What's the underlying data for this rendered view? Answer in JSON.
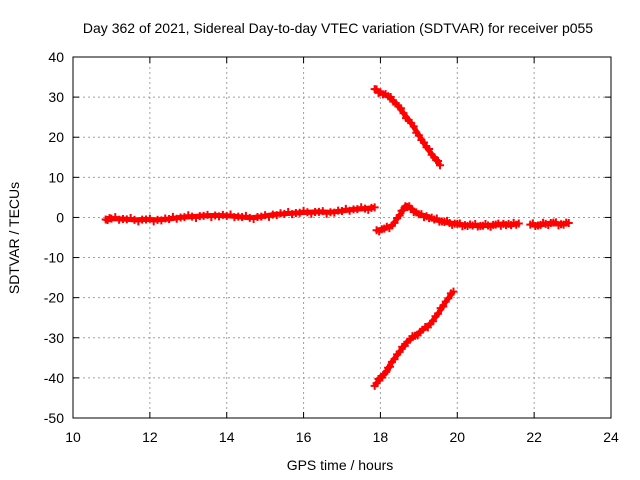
{
  "chart_data": {
    "type": "scatter",
    "title": "Day 362 of 2021, Sidereal Day-to-day VTEC variation (SDTVAR) for receiver p055",
    "xlabel": "GPS time / hours",
    "ylabel": "SDTVAR / TECUs",
    "xlim": [
      10,
      24
    ],
    "ylim": [
      -50,
      40
    ],
    "x_ticks": [
      "10",
      "12",
      "14",
      "16",
      "18",
      "20",
      "22",
      "24"
    ],
    "y_ticks": [
      "40",
      "30",
      "20",
      "10",
      "0",
      "-10",
      "-20",
      "-30",
      "-40",
      "-50"
    ],
    "grid": true,
    "series_color": "#ff0000",
    "series": [
      {
        "x": [
          10.85,
          11.0,
          11.3,
          11.6,
          11.9,
          12.2,
          12.5,
          12.8,
          13.1,
          13.4,
          13.7,
          14.0,
          14.3,
          14.6,
          14.9,
          15.2,
          15.5,
          15.8,
          16.1,
          16.4,
          16.7,
          17.0,
          17.3,
          17.6,
          17.85
        ],
        "y": [
          -0.5,
          -0.3,
          -0.4,
          -0.6,
          -0.5,
          -0.6,
          -0.4,
          0.0,
          0.2,
          0.4,
          0.5,
          0.4,
          0.2,
          -0.1,
          0.2,
          0.7,
          0.9,
          1.1,
          1.3,
          1.4,
          1.3,
          1.6,
          2.0,
          2.2,
          2.5
        ]
      },
      {
        "x": [
          17.9,
          18.1,
          18.3,
          18.5,
          18.65,
          18.8,
          19.0,
          19.2,
          19.4,
          19.6,
          19.8,
          20.0,
          20.2,
          20.4,
          20.6,
          20.8,
          21.0,
          21.2,
          21.4,
          21.6
        ],
        "y": [
          -3.2,
          -2.8,
          -2.0,
          0.5,
          2.8,
          2.2,
          0.8,
          0.3,
          -0.5,
          -1.0,
          -1.4,
          -1.6,
          -1.9,
          -2.0,
          -2.1,
          -2.0,
          -1.8,
          -1.6,
          -1.9,
          -1.5
        ]
      },
      {
        "x": [
          21.9,
          22.1,
          22.3,
          22.5,
          22.7,
          22.9
        ],
        "y": [
          -1.8,
          -2.0,
          -1.6,
          -1.3,
          -1.7,
          -1.4
        ]
      },
      {
        "x": [
          17.85,
          18.0,
          18.2,
          18.4,
          18.6,
          18.8,
          19.0,
          19.2,
          19.4,
          19.55
        ],
        "y": [
          32.0,
          31.2,
          30.2,
          28.5,
          26.0,
          23.5,
          20.5,
          17.5,
          15.0,
          13.0
        ]
      },
      {
        "x": [
          17.85,
          18.0,
          18.15,
          18.3,
          18.5,
          18.7,
          18.9,
          19.1,
          19.3,
          19.5,
          19.7,
          19.9
        ],
        "y": [
          -42.0,
          -40.0,
          -38.5,
          -36.0,
          -33.5,
          -31.0,
          -29.5,
          -28.0,
          -26.5,
          -24.0,
          -21.0,
          -18.5
        ]
      }
    ]
  }
}
